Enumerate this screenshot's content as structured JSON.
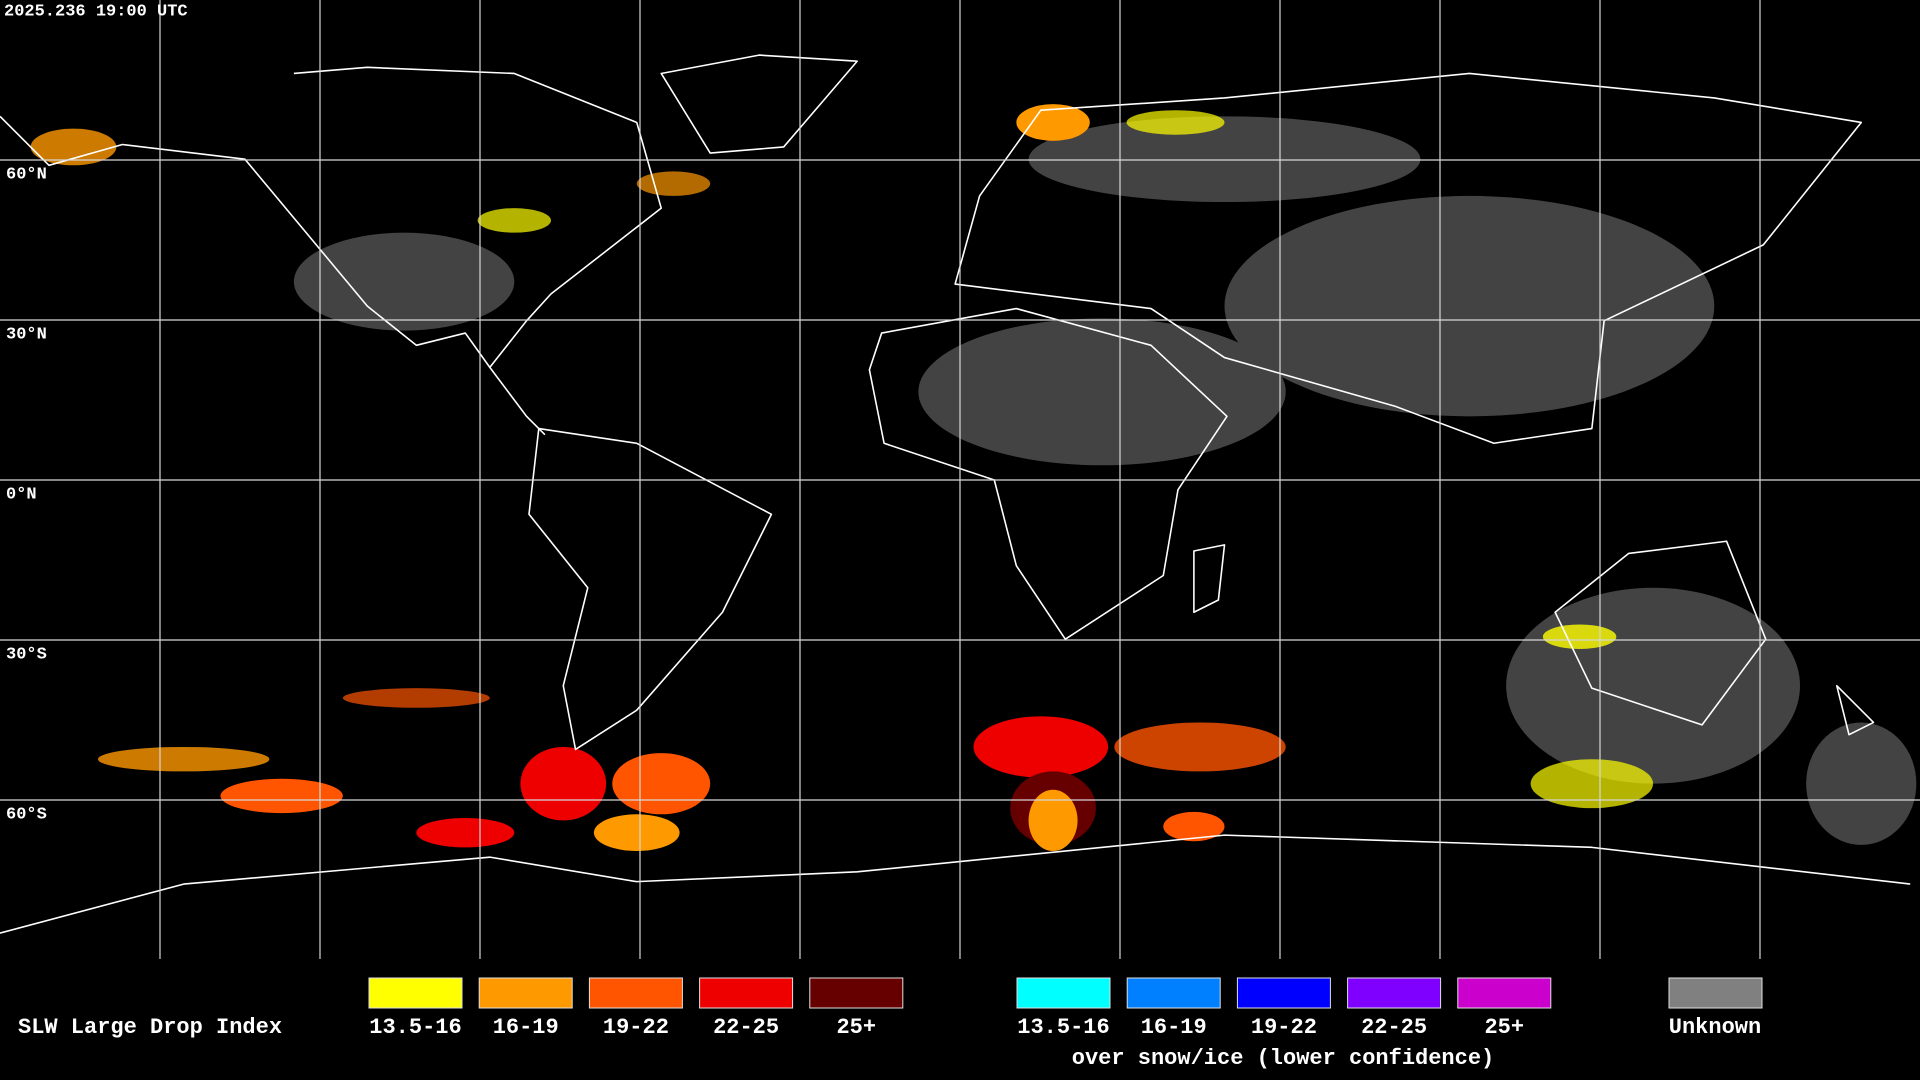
{
  "timestamp": "2025.236 19:00 UTC",
  "latitude_labels": [
    "60°N",
    "30°N",
    "0°N",
    "30°S",
    "60°S"
  ],
  "legend": {
    "title": "SLW Large Drop Index",
    "groups": [
      {
        "items": [
          {
            "label": "13.5-16",
            "color": "#ffff00"
          },
          {
            "label": "16-19",
            "color": "#ff9900"
          },
          {
            "label": "19-22",
            "color": "#ff5500"
          },
          {
            "label": "22-25",
            "color": "#ee0000"
          },
          {
            "label": "25+",
            "color": "#660000"
          }
        ]
      },
      {
        "caption": "over snow/ice (lower confidence)",
        "items": [
          {
            "label": "13.5-16",
            "color": "#00ffff"
          },
          {
            "label": "16-19",
            "color": "#0080ff"
          },
          {
            "label": "19-22",
            "color": "#0000ff"
          },
          {
            "label": "22-25",
            "color": "#8000ff"
          },
          {
            "label": "25+",
            "color": "#cc00cc"
          }
        ]
      }
    ],
    "unknown": {
      "label": "Unknown",
      "color": "#808080"
    }
  }
}
